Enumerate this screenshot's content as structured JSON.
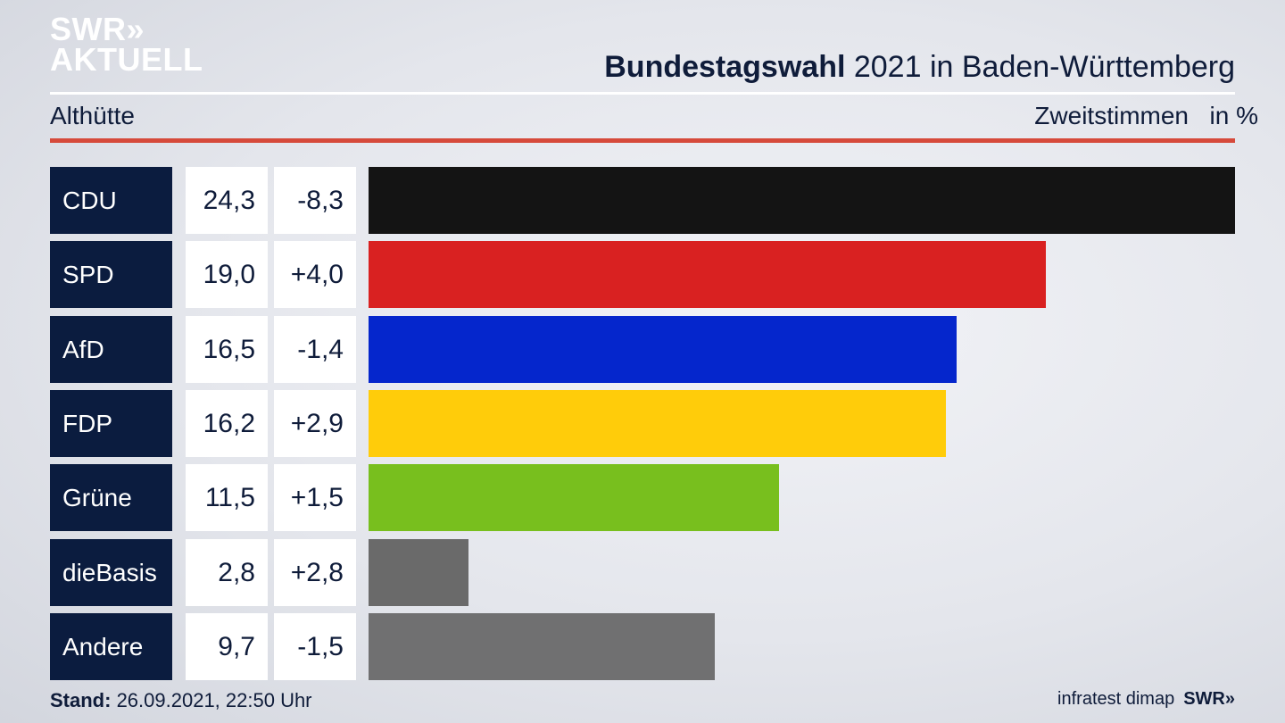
{
  "logo": {
    "line1": "SWR»",
    "line2": "AKTUELL"
  },
  "header": {
    "title_bold": "Bundestagswahl",
    "title_rest": " 2021 in Baden-Württemberg",
    "location": "Althütte",
    "measure": "Zweitstimmen",
    "unit": "in %"
  },
  "chart_data": {
    "type": "bar",
    "orientation": "horizontal",
    "categories": [
      "CDU",
      "SPD",
      "AfD",
      "FDP",
      "Grüne",
      "dieBasis",
      "Andere"
    ],
    "values": [
      24.3,
      19.0,
      16.5,
      16.2,
      11.5,
      2.8,
      9.7
    ],
    "value_labels": [
      "24,3",
      "19,0",
      "16,5",
      "16,2",
      "11,5",
      "2,8",
      "9,7"
    ],
    "diff_labels": [
      "-8,3",
      "+4,0",
      "-1,4",
      "+2,9",
      "+1,5",
      "+2,8",
      "-1,5"
    ],
    "colors": [
      "#141414",
      "#d92121",
      "#0526cc",
      "#ffcc0a",
      "#78bf1e",
      "#6a6a6a",
      "#707071"
    ],
    "xlim": [
      0,
      24.3
    ]
  },
  "footer": {
    "stand_label": "Stand:",
    "stand_value": " 26.09.2021, 22:50 Uhr",
    "source": "infratest dimap",
    "brand": "SWR»"
  }
}
